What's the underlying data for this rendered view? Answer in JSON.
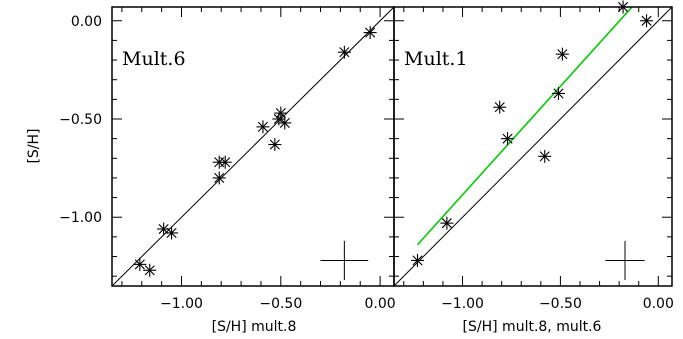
{
  "chart_data": [
    {
      "type": "scatter",
      "panel_label": "Mult.6",
      "xlabel": "[S/H] mult.8",
      "ylabel": "[S/H]",
      "xlim": [
        -1.35,
        0.07
      ],
      "ylim": [
        -1.35,
        0.07
      ],
      "x_ticks": [
        -1.0,
        -0.5,
        0.0
      ],
      "x_tick_labels": [
        "−1.00",
        "−0.50",
        "0.00"
      ],
      "y_ticks": [
        -1.0,
        -0.5,
        0.0
      ],
      "y_tick_labels": [
        "−1.00",
        "−0.50",
        "0.00"
      ],
      "marker": "asterisk",
      "reference_line": {
        "slope": 1,
        "intercept": 0,
        "color": "#000000"
      },
      "error_cross": {
        "x": -0.18,
        "y": -1.22,
        "xerr": 0.12,
        "yerr": 0.1
      },
      "points": [
        {
          "x": -1.21,
          "y": -1.24
        },
        {
          "x": -1.16,
          "y": -1.27
        },
        {
          "x": -1.09,
          "y": -1.06
        },
        {
          "x": -1.05,
          "y": -1.08
        },
        {
          "x": -0.81,
          "y": -0.72
        },
        {
          "x": -0.81,
          "y": -0.8
        },
        {
          "x": -0.78,
          "y": -0.72
        },
        {
          "x": -0.59,
          "y": -0.54
        },
        {
          "x": -0.53,
          "y": -0.63
        },
        {
          "x": -0.51,
          "y": -0.5
        },
        {
          "x": -0.5,
          "y": -0.47
        },
        {
          "x": -0.48,
          "y": -0.52
        },
        {
          "x": -0.18,
          "y": -0.16
        },
        {
          "x": -0.05,
          "y": -0.06
        }
      ]
    },
    {
      "type": "scatter",
      "panel_label": "Mult.1",
      "xlabel": "[S/H] mult.8, mult.6",
      "ylabel": "",
      "xlim": [
        -1.35,
        0.07
      ],
      "ylim": [
        -1.35,
        0.07
      ],
      "x_ticks": [
        -1.0,
        -0.5,
        0.0
      ],
      "x_tick_labels": [
        "−1.00",
        "−0.50",
        "0.00"
      ],
      "y_ticks": [],
      "y_tick_labels": [],
      "marker": "asterisk",
      "reference_line": {
        "slope": 1,
        "intercept": 0,
        "color": "#000000"
      },
      "fit_line": {
        "x0": -1.23,
        "y0": -1.14,
        "x1": -0.08,
        "y1": 0.13,
        "color": "#00cc00"
      },
      "error_cross": {
        "x": -0.17,
        "y": -1.22,
        "xerr": 0.1,
        "yerr": 0.1
      },
      "points": [
        {
          "x": -1.23,
          "y": -1.22
        },
        {
          "x": -1.08,
          "y": -1.03
        },
        {
          "x": -0.81,
          "y": -0.44
        },
        {
          "x": -0.77,
          "y": -0.6
        },
        {
          "x": -0.58,
          "y": -0.69
        },
        {
          "x": -0.51,
          "y": -0.37
        },
        {
          "x": -0.49,
          "y": -0.17
        },
        {
          "x": -0.18,
          "y": 0.07
        },
        {
          "x": -0.06,
          "y": 0.0
        }
      ]
    }
  ],
  "colors": {
    "axis": "#000000",
    "marker": "#000000",
    "fit": "#00cc00"
  }
}
